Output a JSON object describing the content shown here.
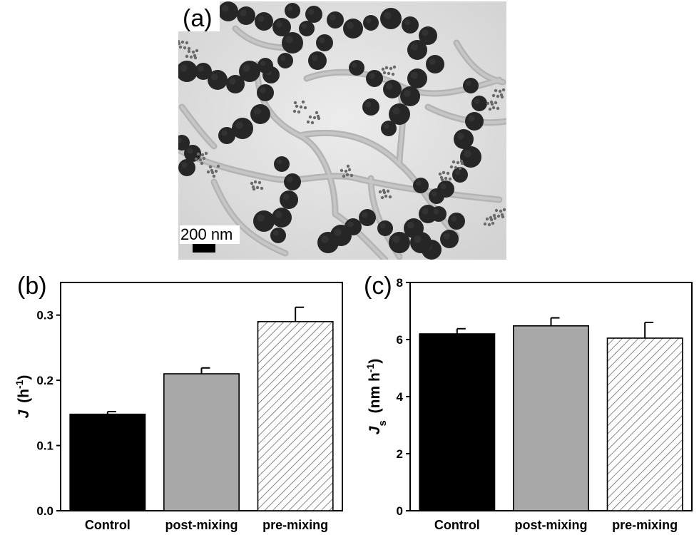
{
  "figure": {
    "panel_labels": [
      "(a)",
      "(b)",
      "(c)"
    ],
    "micrograph": {
      "scale_bar_label": "200 nm"
    }
  },
  "chart_data": [
    {
      "type": "bar",
      "panel": "(b)",
      "categories": [
        "Control",
        "post-mixing",
        "pre-mixing"
      ],
      "values": [
        0.148,
        0.21,
        0.29
      ],
      "errors": [
        0.004,
        0.009,
        0.022
      ],
      "fills": [
        "solid-black",
        "solid-gray",
        "diagonal-hatch"
      ],
      "ylabel_main": "J",
      "ylabel_unit": "(h",
      "ylabel_exp": "-1",
      "ylabel_close": ")",
      "ylim": [
        0.0,
        0.35
      ],
      "yticks": [
        "0.0",
        "0.1",
        "0.2",
        "0.3"
      ],
      "grid": false
    },
    {
      "type": "bar",
      "panel": "(c)",
      "categories": [
        "Control",
        "post-mixing",
        "pre-mixing"
      ],
      "values": [
        6.2,
        6.48,
        6.05
      ],
      "errors": [
        0.18,
        0.28,
        0.55
      ],
      "fills": [
        "solid-black",
        "solid-gray",
        "diagonal-hatch"
      ],
      "ylabel_main": "J",
      "ylabel_sub": "s",
      "ylabel_unit": "(nm h",
      "ylabel_exp": "-1",
      "ylabel_close": ")",
      "ylim": [
        0,
        8
      ],
      "yticks": [
        "0",
        "2",
        "4",
        "6",
        "8"
      ],
      "grid": false
    }
  ],
  "colors": {
    "control_bar": "#000000",
    "post_mixing_bar": "#a8a8a8",
    "pre_mixing_hatch": "#555555",
    "micrograph_background": "#e3e3e3",
    "particle": "#262626"
  }
}
